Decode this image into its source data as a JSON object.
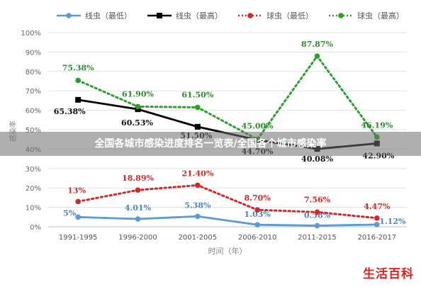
{
  "chart_data": {
    "type": "line",
    "title": "",
    "xlabel": "时间（年）",
    "ylabel": "感染率",
    "categories": [
      "1991-1995",
      "1996-2000",
      "2001-2005",
      "2006-2010",
      "2011-2015",
      "2016-2017"
    ],
    "y_ticks": [
      "0%",
      "10%",
      "20%",
      "30%",
      "40%",
      "50%",
      "60%",
      "70%",
      "80%",
      "90%",
      "100%"
    ],
    "ylim": [
      0,
      100
    ],
    "grid": true,
    "legend_position": "top",
    "series": [
      {
        "name": "线虫（最低）",
        "color": "#5b9bd5",
        "dash": "solid",
        "marker": "circle",
        "values": [
          5,
          4.01,
          5.38,
          1.03,
          0.58,
          1.12
        ],
        "labels": [
          "5%",
          "4.01%",
          "5.38%",
          "1.03%",
          "0.58%",
          "1.12%"
        ],
        "label_color": "#4a86c5"
      },
      {
        "name": "线虫（最高）",
        "color": "#000000",
        "dash": "solid",
        "marker": "square",
        "values": [
          65.38,
          60.53,
          51.5,
          44.7,
          40.08,
          42.9
        ],
        "labels": [
          "65.38%",
          "60.53%",
          "51.50%",
          "44.70%",
          "40.08%",
          "42.90%"
        ],
        "label_color": "#111111"
      },
      {
        "name": "球虫（最低）",
        "color": "#d62728",
        "dash": "dotted",
        "marker": "circle",
        "values": [
          13,
          18.89,
          21.4,
          8.7,
          7.56,
          4.47
        ],
        "labels": [
          "13%",
          "18.89%",
          "21.40%",
          "8.70%",
          "7.56%",
          "4.47%"
        ],
        "label_color": "#d62728"
      },
      {
        "name": "球虫（最高）",
        "color": "#2ca02c",
        "dash": "dotted",
        "marker": "circle",
        "values": [
          75.38,
          61.9,
          61.5,
          45,
          87.87,
          46.19
        ],
        "labels": [
          "75.38%",
          "61.90%",
          "61.50%",
          "45.00%",
          "87.87%",
          "46.19%"
        ],
        "label_color": "#2e8b2e"
      }
    ]
  },
  "banner": {
    "text": "全国各城市感染进度排名一览表/全国各个城市感染率"
  },
  "watermark": {
    "text": "生活百科"
  }
}
